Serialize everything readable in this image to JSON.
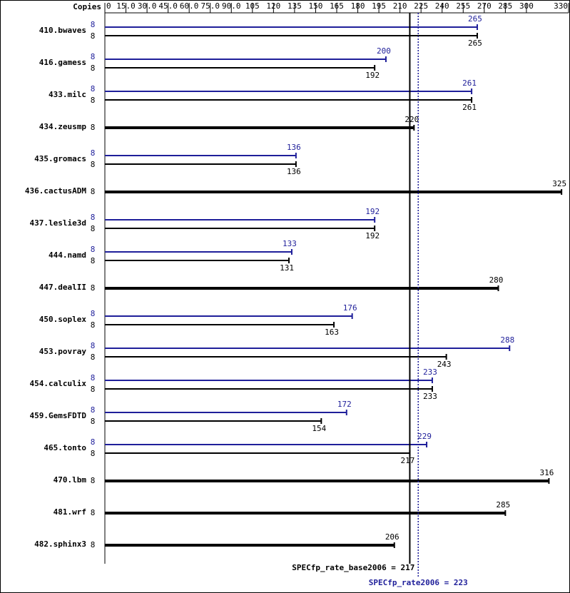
{
  "chart_data": {
    "type": "bar",
    "orientation": "horizontal",
    "copies_label": "Copies",
    "categories": [
      "410.bwaves",
      "416.gamess",
      "433.milc",
      "434.zeusmp",
      "435.gromacs",
      "436.cactusADM",
      "437.leslie3d",
      "444.namd",
      "447.dealII",
      "450.soplex",
      "453.povray",
      "454.calculix",
      "459.GemsFDTD",
      "465.tonto",
      "470.lbm",
      "481.wrf",
      "482.sphinx3"
    ],
    "series": [
      {
        "color": "#1f1f9a",
        "values": [
          265,
          200,
          261,
          null,
          136,
          null,
          192,
          133,
          null,
          176,
          288,
          233,
          172,
          229,
          null,
          null,
          null
        ],
        "copies": [
          8,
          8,
          8,
          null,
          8,
          null,
          8,
          8,
          null,
          8,
          8,
          8,
          8,
          8,
          null,
          null,
          null
        ]
      },
      {
        "color": "#000000",
        "values": [
          265,
          192,
          261,
          220,
          136,
          325,
          192,
          131,
          280,
          163,
          243,
          233,
          154,
          217,
          316,
          285,
          206
        ],
        "copies": [
          8,
          8,
          8,
          8,
          8,
          8,
          8,
          8,
          8,
          8,
          8,
          8,
          8,
          8,
          8,
          8,
          8
        ]
      }
    ],
    "xlim": [
      0,
      330
    ],
    "xticks": [
      0,
      {
        "value": 15,
        "label": "15.0"
      },
      {
        "value": 30,
        "label": "30.0"
      },
      {
        "value": 45,
        "label": "45.0"
      },
      {
        "value": 60,
        "label": "60.0"
      },
      {
        "value": 75,
        "label": "75.0"
      },
      {
        "value": 90,
        "label": "90.0"
      },
      105,
      120,
      135,
      150,
      165,
      180,
      195,
      210,
      225,
      240,
      255,
      270,
      285,
      300,
      330
    ],
    "reference_lines": [
      {
        "value": 217,
        "label": "SPECfp_rate_base2006 = 217",
        "color": "#000000",
        "style": "solid"
      },
      {
        "value": 223,
        "label": "SPECfp_rate2006 = 223",
        "color": "#1f1f9a",
        "style": "dotted"
      }
    ]
  }
}
